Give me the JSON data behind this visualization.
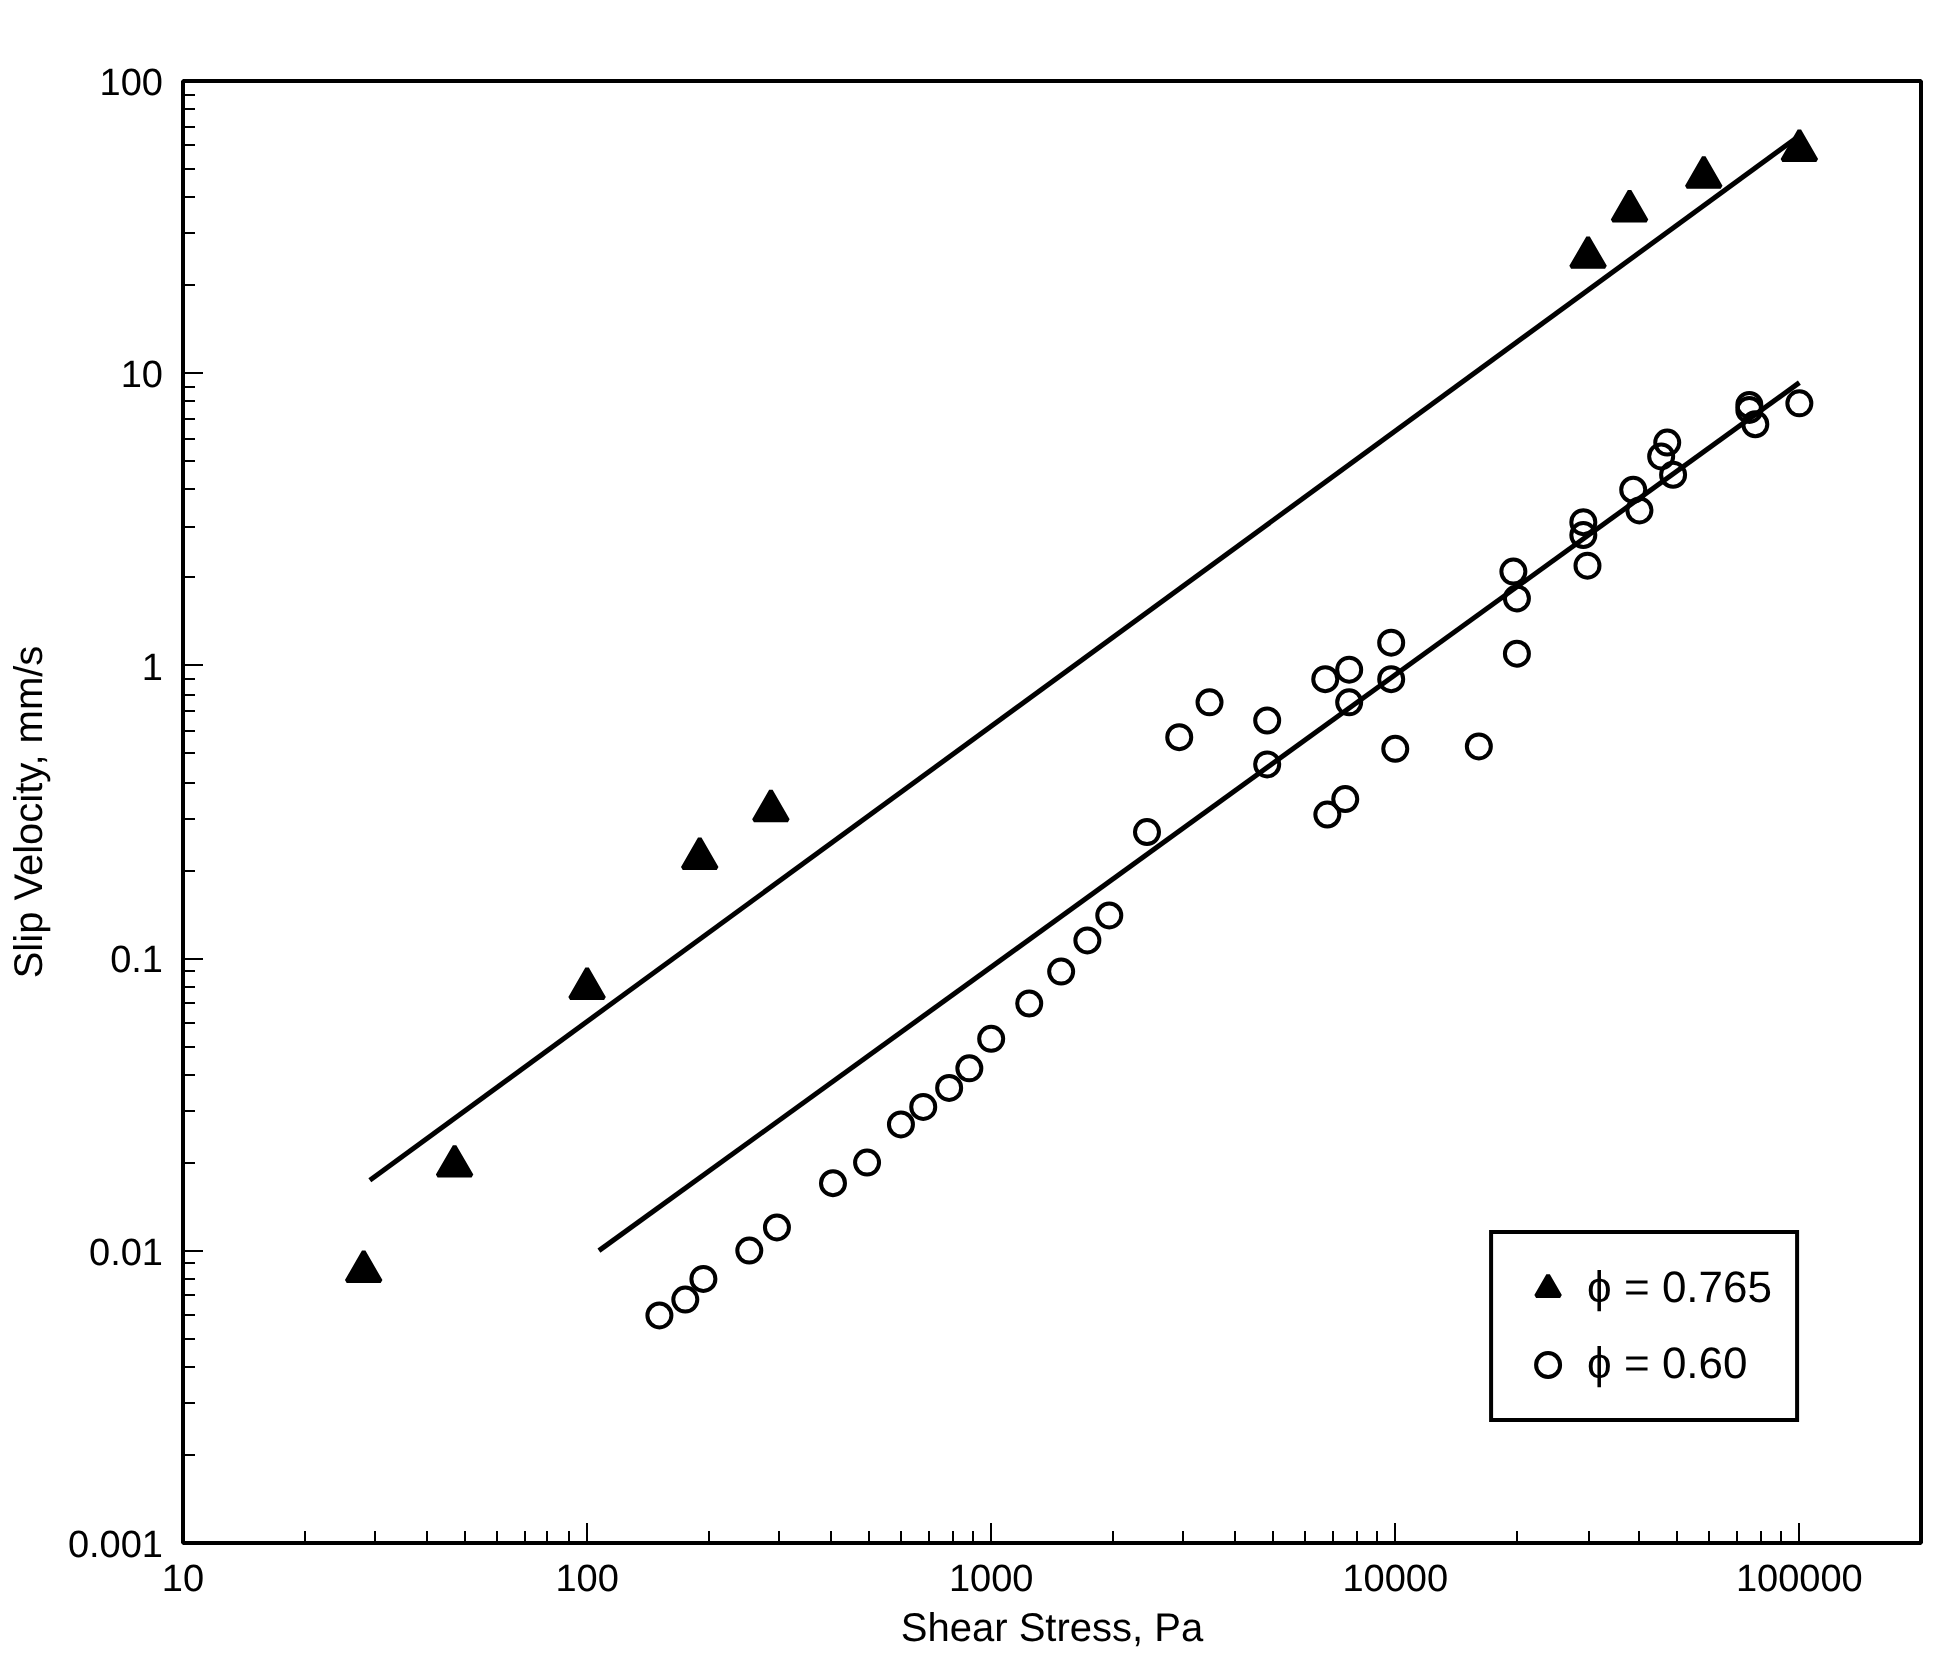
{
  "chart_data": {
    "type": "scatter",
    "xlabel": "Shear Stress, Pa",
    "ylabel": "Slip Velocity, mm/s",
    "log": "xy",
    "grid": false,
    "legend": "bottom right",
    "xlim": [
      10,
      200000
    ],
    "xticks": [
      10,
      100,
      1000,
      10000,
      100000
    ],
    "ylim": [
      0.001,
      100
    ],
    "yticks": [
      0.001,
      0.01,
      0.1,
      1,
      10,
      100
    ],
    "series": [
      {
        "name": "ϕ = 0.765",
        "marker": "triangle",
        "color": "#000000",
        "x": [
          28,
          47,
          100,
          190,
          285,
          30000,
          38000,
          58000,
          100000
        ],
        "values": [
          0.0085,
          0.0195,
          0.079,
          0.22,
          0.32,
          25,
          36,
          47,
          58
        ]
      },
      {
        "name": "ϕ = 0.60",
        "marker": "circle",
        "color": "#000000",
        "x": [
          151,
          175,
          194,
          252,
          295,
          406,
          493,
          598,
          679,
          787,
          883,
          1000,
          1242,
          1490,
          1730,
          1960,
          2430,
          2920,
          3470,
          4820,
          4820,
          6710,
          6790,
          7520,
          7690,
          7690,
          9770,
          9770,
          10000,
          16100,
          19600,
          20000,
          20000,
          29200,
          29200,
          29900,
          38800,
          40200,
          45500,
          47100,
          48700,
          75200,
          75200,
          77800,
          100000
        ],
        "values": [
          0.006,
          0.0068,
          0.008,
          0.01,
          0.012,
          0.017,
          0.02,
          0.027,
          0.031,
          0.036,
          0.042,
          0.053,
          0.07,
          0.09,
          0.115,
          0.14,
          0.27,
          0.57,
          0.75,
          0.65,
          0.46,
          0.9,
          0.31,
          0.35,
          0.97,
          0.75,
          1.2,
          0.9,
          0.52,
          0.53,
          2.1,
          1.7,
          1.1,
          3.1,
          2.8,
          2.2,
          4.0,
          3.4,
          5.2,
          5.8,
          4.5,
          7.8,
          7.5,
          6.7,
          7.9
        ]
      },
      {
        "type": "line",
        "color": "#000000",
        "x": [
          29,
          100000
        ],
        "values": [
          0.0174,
          65
        ]
      },
      {
        "type": "line",
        "color": "#000000",
        "x": [
          107,
          100000
        ],
        "values": [
          0.01,
          9.3
        ]
      }
    ]
  }
}
